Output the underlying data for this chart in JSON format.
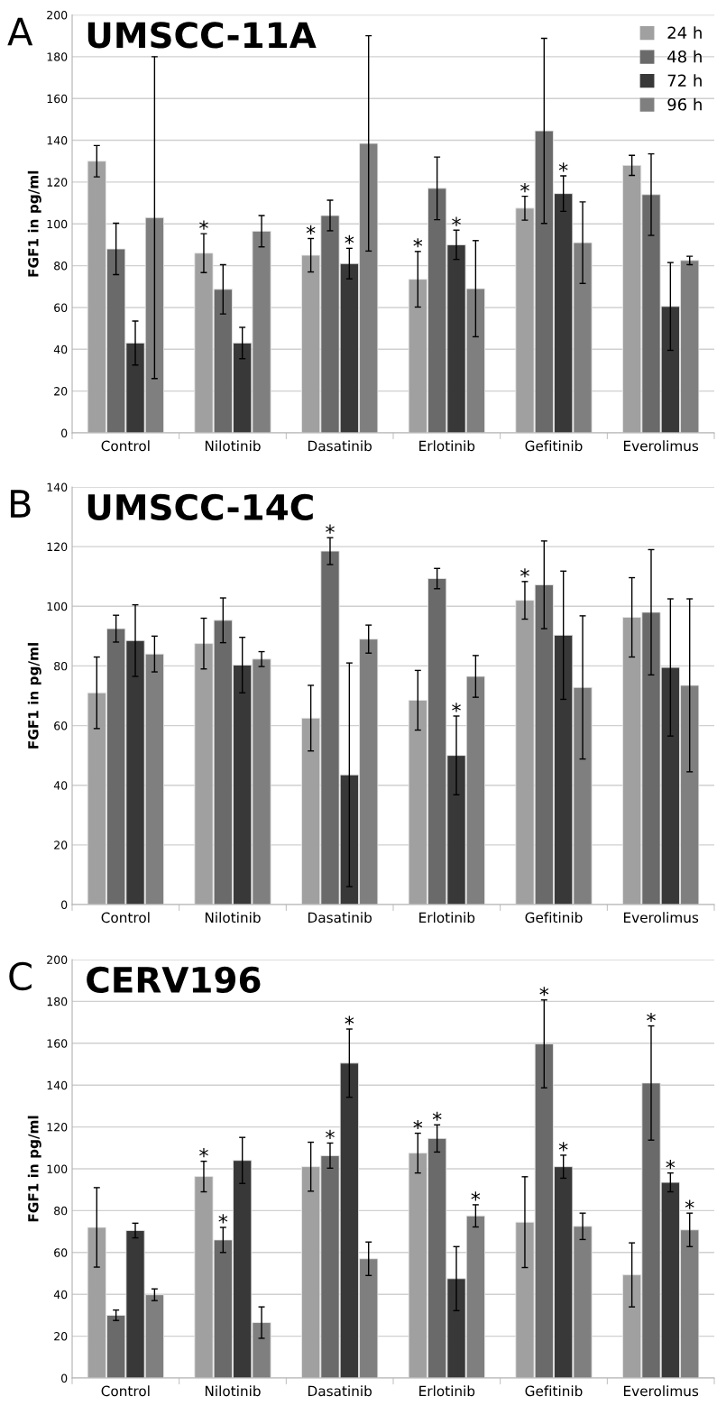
{
  "chart_data": [
    {
      "type": "bar",
      "title": "UMSCC-11A",
      "ylabel": "FGF1 in pg/ml",
      "annotations": [
        "A"
      ],
      "categories": [
        "Control",
        "Nilotinib",
        "Dasatinib",
        "Erlotinib",
        "Gefitinib",
        "Everolimus"
      ],
      "ylim": [
        0,
        200
      ],
      "yticks": [
        0,
        20,
        40,
        60,
        80,
        100,
        120,
        140,
        160,
        180,
        200
      ],
      "grid": "y",
      "legend": "top right",
      "series": [
        {
          "name": "24 h",
          "color": "#a0a0a0",
          "values": [
            130,
            86,
            85,
            73.5,
            107.5,
            128
          ],
          "errors": [
            7.5,
            9.3,
            8,
            13.3,
            5.7,
            4.8
          ],
          "value_labels": [
            null,
            "*",
            "*",
            "*",
            "*",
            null
          ]
        },
        {
          "name": "48 h",
          "color": "#6a6a6a",
          "values": [
            88,
            68.7,
            104,
            117,
            144.5,
            114
          ],
          "errors": [
            12.3,
            11.8,
            7.3,
            15,
            44.3,
            19.5
          ],
          "value_labels": [
            null,
            null,
            null,
            null,
            null,
            null
          ]
        },
        {
          "name": "72 h",
          "color": "#383838",
          "values": [
            43,
            43,
            81,
            90,
            114.5,
            60.5
          ],
          "errors": [
            10.5,
            7.5,
            7.3,
            7,
            8.5,
            21
          ],
          "value_labels": [
            null,
            null,
            "*",
            "*",
            "*",
            null
          ]
        },
        {
          "name": "96 h",
          "color": "#7f7f7f",
          "values": [
            103,
            96.5,
            138.5,
            69,
            91,
            82.5
          ],
          "errors": [
            77,
            7.5,
            51.5,
            23,
            19.5,
            2
          ],
          "value_labels": [
            null,
            null,
            null,
            null,
            null,
            null
          ]
        }
      ]
    },
    {
      "type": "bar",
      "title": "UMSCC-14C",
      "ylabel": "FGF1 in pg/ml",
      "annotations": [
        "B"
      ],
      "categories": [
        "Control",
        "Nilotinib",
        "Dasatinib",
        "Erlotinib",
        "Gefitinib",
        "Everolimus"
      ],
      "ylim": [
        0,
        140
      ],
      "yticks": [
        0,
        20,
        40,
        60,
        80,
        100,
        120,
        140
      ],
      "grid": "y",
      "series": [
        {
          "color": "#a0a0a0",
          "values": [
            71,
            87.5,
            62.5,
            68.5,
            102,
            96.3
          ],
          "errors": [
            12,
            8.5,
            11,
            10,
            6.3,
            13.3
          ],
          "value_labels": [
            null,
            null,
            null,
            null,
            "*",
            null
          ]
        },
        {
          "color": "#6a6a6a",
          "values": [
            92.5,
            95.3,
            118.5,
            109.3,
            107.2,
            98
          ],
          "errors": [
            4.5,
            7.5,
            4.5,
            3.4,
            14.7,
            21
          ],
          "value_labels": [
            null,
            null,
            "*",
            null,
            null,
            null
          ]
        },
        {
          "color": "#383838",
          "values": [
            88.5,
            80.3,
            43.5,
            50,
            90.3,
            79.5
          ],
          "errors": [
            12,
            9.3,
            37.5,
            13.2,
            21.5,
            23
          ],
          "value_labels": [
            null,
            null,
            null,
            "*",
            null,
            null
          ]
        },
        {
          "color": "#7f7f7f",
          "values": [
            84,
            82.3,
            89,
            76.5,
            72.8,
            73.5
          ],
          "errors": [
            6,
            2.5,
            4.7,
            7,
            24,
            29
          ],
          "value_labels": [
            null,
            null,
            null,
            null,
            null,
            null
          ]
        }
      ]
    },
    {
      "type": "bar",
      "title": "CERV196",
      "ylabel": "FGF1 in pg/ml",
      "annotations": [
        "C"
      ],
      "categories": [
        "Control",
        "Nilotinib",
        "Dasatinib",
        "Erlotinib",
        "Gefitinib",
        "Everolimus"
      ],
      "ylim": [
        0,
        200
      ],
      "yticks": [
        0,
        20,
        40,
        60,
        80,
        100,
        120,
        140,
        160,
        180,
        200
      ],
      "grid": "y",
      "series": [
        {
          "color": "#a0a0a0",
          "values": [
            72,
            96.3,
            101,
            107.5,
            74.5,
            49.3
          ],
          "errors": [
            19,
            7.3,
            11.7,
            9.5,
            21.7,
            15.3
          ],
          "value_labels": [
            null,
            "*",
            null,
            "*",
            null,
            null
          ]
        },
        {
          "color": "#6a6a6a",
          "values": [
            30,
            66,
            106.3,
            114.5,
            159.7,
            141
          ],
          "errors": [
            2.5,
            6,
            6,
            6.5,
            21,
            27.3
          ],
          "value_labels": [
            null,
            "*",
            "*",
            "*",
            "*",
            "*"
          ]
        },
        {
          "color": "#383838",
          "values": [
            70.5,
            104,
            150.5,
            47.5,
            101,
            93.5
          ],
          "errors": [
            3.5,
            11,
            16.3,
            15.3,
            5.5,
            4.5
          ],
          "value_labels": [
            null,
            null,
            "*",
            null,
            "*",
            "*"
          ]
        },
        {
          "color": "#7f7f7f",
          "values": [
            39.8,
            26.5,
            57,
            77.5,
            72.5,
            70.8
          ],
          "errors": [
            2.8,
            7.5,
            8,
            5.3,
            6.3,
            8
          ],
          "value_labels": [
            null,
            null,
            null,
            "*",
            null,
            "*"
          ]
        }
      ]
    }
  ]
}
